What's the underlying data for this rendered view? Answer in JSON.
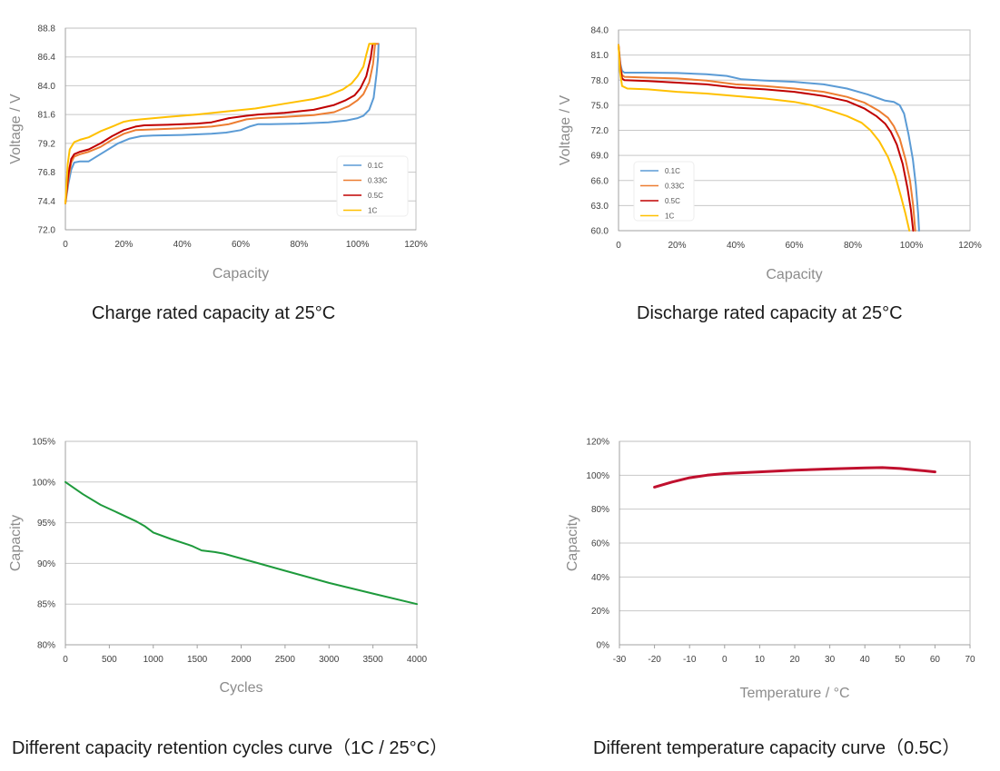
{
  "chart_data": [
    {
      "id": "charge",
      "type": "line",
      "title": "Charge rated capacity at 25°C",
      "xlabel": "Capacity",
      "ylabel": "Voltage / V",
      "xlim": [
        0,
        120
      ],
      "ylim": [
        72.0,
        88.8
      ],
      "xticks": [
        0,
        20,
        40,
        60,
        80,
        100,
        120
      ],
      "xtick_labels": [
        "0",
        "20%",
        "40%",
        "60%",
        "80%",
        "100%",
        "120%"
      ],
      "yticks": [
        72.0,
        74.4,
        76.8,
        79.2,
        81.6,
        84.0,
        86.4,
        88.8
      ],
      "ytick_labels": [
        "72.0",
        "74.4",
        "76.8",
        "79.2",
        "81.6",
        "84.0",
        "86.4",
        "88.8"
      ],
      "grid": "horizontal",
      "legend": "bottom-right",
      "series": [
        {
          "name": "0.1C",
          "color": "#5b9bd5",
          "points": [
            [
              0,
              74.2
            ],
            [
              1,
              75.8
            ],
            [
              2,
              77.0
            ],
            [
              3,
              77.6
            ],
            [
              5,
              77.7
            ],
            [
              8,
              77.7
            ],
            [
              10,
              78.0
            ],
            [
              14,
              78.6
            ],
            [
              18,
              79.2
            ],
            [
              22,
              79.6
            ],
            [
              26,
              79.8
            ],
            [
              30,
              79.85
            ],
            [
              40,
              79.9
            ],
            [
              50,
              80.0
            ],
            [
              55,
              80.1
            ],
            [
              60,
              80.3
            ],
            [
              63,
              80.6
            ],
            [
              66,
              80.8
            ],
            [
              70,
              80.8
            ],
            [
              80,
              80.85
            ],
            [
              90,
              80.95
            ],
            [
              96,
              81.1
            ],
            [
              100,
              81.3
            ],
            [
              102,
              81.5
            ],
            [
              104,
              82.0
            ],
            [
              105.5,
              83.0
            ],
            [
              106.5,
              85.0
            ],
            [
              107,
              86.3
            ],
            [
              107.2,
              87.5
            ]
          ]
        },
        {
          "name": "0.33C",
          "color": "#ed7d31",
          "points": [
            [
              0,
              74.2
            ],
            [
              1,
              76.2
            ],
            [
              2,
              77.6
            ],
            [
              3,
              78.1
            ],
            [
              5,
              78.3
            ],
            [
              8,
              78.5
            ],
            [
              12,
              78.9
            ],
            [
              16,
              79.5
            ],
            [
              20,
              80.0
            ],
            [
              24,
              80.3
            ],
            [
              28,
              80.35
            ],
            [
              40,
              80.45
            ],
            [
              50,
              80.6
            ],
            [
              56,
              80.8
            ],
            [
              62,
              81.2
            ],
            [
              66,
              81.3
            ],
            [
              75,
              81.4
            ],
            [
              85,
              81.55
            ],
            [
              92,
              81.8
            ],
            [
              97,
              82.3
            ],
            [
              100,
              82.8
            ],
            [
              102,
              83.3
            ],
            [
              104,
              84.3
            ],
            [
              105.3,
              85.8
            ],
            [
              106,
              87.5
            ],
            [
              107,
              87.5
            ]
          ]
        },
        {
          "name": "0.5C",
          "color": "#c00000",
          "points": [
            [
              0,
              74.2
            ],
            [
              1,
              76.6
            ],
            [
              2,
              77.9
            ],
            [
              3,
              78.3
            ],
            [
              5,
              78.5
            ],
            [
              8,
              78.7
            ],
            [
              12,
              79.2
            ],
            [
              16,
              79.8
            ],
            [
              20,
              80.3
            ],
            [
              24,
              80.6
            ],
            [
              27,
              80.7
            ],
            [
              35,
              80.75
            ],
            [
              45,
              80.85
            ],
            [
              50,
              80.95
            ],
            [
              56,
              81.3
            ],
            [
              62,
              81.5
            ],
            [
              66,
              81.6
            ],
            [
              75,
              81.75
            ],
            [
              85,
              82.0
            ],
            [
              92,
              82.4
            ],
            [
              96,
              82.8
            ],
            [
              99,
              83.2
            ],
            [
              101,
              83.8
            ],
            [
              103,
              84.8
            ],
            [
              104.5,
              86.3
            ],
            [
              105.2,
              87.5
            ],
            [
              106,
              87.5
            ]
          ]
        },
        {
          "name": "1C",
          "color": "#ffc000",
          "points": [
            [
              0,
              74.2
            ],
            [
              0.8,
              77.5
            ],
            [
              1.5,
              78.7
            ],
            [
              3,
              79.3
            ],
            [
              5,
              79.5
            ],
            [
              8,
              79.7
            ],
            [
              12,
              80.2
            ],
            [
              16,
              80.6
            ],
            [
              20,
              81.0
            ],
            [
              22,
              81.1
            ],
            [
              26,
              81.2
            ],
            [
              35,
              81.4
            ],
            [
              45,
              81.6
            ],
            [
              55,
              81.85
            ],
            [
              65,
              82.1
            ],
            [
              75,
              82.5
            ],
            [
              85,
              82.9
            ],
            [
              90,
              83.2
            ],
            [
              95,
              83.7
            ],
            [
              98,
              84.2
            ],
            [
              100,
              84.8
            ],
            [
              102,
              85.6
            ],
            [
              103,
              86.6
            ],
            [
              104,
              87.5
            ],
            [
              106,
              87.5
            ]
          ]
        }
      ]
    },
    {
      "id": "discharge",
      "type": "line",
      "title": "Discharge rated capacity at 25°C",
      "xlabel": "Capacity",
      "ylabel": "Voltage / V",
      "xlim": [
        0,
        120
      ],
      "ylim": [
        60.0,
        84.0
      ],
      "xticks": [
        0,
        20,
        40,
        60,
        80,
        100,
        120
      ],
      "xtick_labels": [
        "0",
        "20%",
        "40%",
        "60%",
        "80%",
        "100%",
        "120%"
      ],
      "yticks": [
        60.0,
        63.0,
        66.0,
        69.0,
        72.0,
        75.0,
        78.0,
        81.0,
        84.0
      ],
      "ytick_labels": [
        "60.0",
        "63.0",
        "66.0",
        "69.0",
        "72.0",
        "75.0",
        "78.0",
        "81.0",
        "84.0"
      ],
      "grid": "horizontal",
      "legend": "bottom-left",
      "series": [
        {
          "name": "0.1C",
          "color": "#5b9bd5",
          "points": [
            [
              0,
              82.2
            ],
            [
              0.6,
              80.0
            ],
            [
              1.2,
              79.1
            ],
            [
              2,
              78.9
            ],
            [
              10,
              78.9
            ],
            [
              20,
              78.85
            ],
            [
              30,
              78.7
            ],
            [
              37,
              78.5
            ],
            [
              42,
              78.1
            ],
            [
              50,
              77.95
            ],
            [
              60,
              77.8
            ],
            [
              70,
              77.5
            ],
            [
              78,
              77.0
            ],
            [
              85,
              76.3
            ],
            [
              89,
              75.8
            ],
            [
              91,
              75.55
            ],
            [
              94,
              75.4
            ],
            [
              96,
              75.0
            ],
            [
              97.5,
              74.0
            ],
            [
              99,
              71.5
            ],
            [
              100.5,
              68.5
            ],
            [
              101.5,
              65.5
            ],
            [
              102.3,
              62.0
            ],
            [
              102.6,
              60.0
            ]
          ]
        },
        {
          "name": "0.33C",
          "color": "#ed7d31",
          "points": [
            [
              0,
              82.2
            ],
            [
              0.6,
              79.8
            ],
            [
              1.2,
              78.6
            ],
            [
              2,
              78.4
            ],
            [
              10,
              78.3
            ],
            [
              20,
              78.2
            ],
            [
              30,
              77.95
            ],
            [
              40,
              77.5
            ],
            [
              50,
              77.3
            ],
            [
              60,
              77.0
            ],
            [
              70,
              76.6
            ],
            [
              78,
              76.0
            ],
            [
              84,
              75.3
            ],
            [
              89,
              74.3
            ],
            [
              92,
              73.5
            ],
            [
              94,
              72.5
            ],
            [
              96,
              71.0
            ],
            [
              98,
              68.5
            ],
            [
              99.5,
              66.0
            ],
            [
              100.6,
              63.0
            ],
            [
              101.3,
              60.0
            ]
          ]
        },
        {
          "name": "0.5C",
          "color": "#c00000",
          "points": [
            [
              0,
              82.2
            ],
            [
              0.6,
              79.5
            ],
            [
              1.2,
              78.2
            ],
            [
              2,
              78.0
            ],
            [
              10,
              77.9
            ],
            [
              20,
              77.7
            ],
            [
              30,
              77.5
            ],
            [
              40,
              77.1
            ],
            [
              50,
              76.9
            ],
            [
              60,
              76.6
            ],
            [
              70,
              76.1
            ],
            [
              78,
              75.5
            ],
            [
              84,
              74.6
            ],
            [
              88,
              73.7
            ],
            [
              91,
              72.8
            ],
            [
              93,
              71.8
            ],
            [
              95,
              70.3
            ],
            [
              97,
              68.0
            ],
            [
              98.7,
              65.0
            ],
            [
              99.8,
              62.5
            ],
            [
              100.6,
              60.0
            ]
          ]
        },
        {
          "name": "1C",
          "color": "#ffc000",
          "points": [
            [
              0,
              82.2
            ],
            [
              0.5,
              79.0
            ],
            [
              1.2,
              77.3
            ],
            [
              3,
              77.0
            ],
            [
              10,
              76.9
            ],
            [
              20,
              76.6
            ],
            [
              30,
              76.4
            ],
            [
              40,
              76.1
            ],
            [
              50,
              75.8
            ],
            [
              60,
              75.4
            ],
            [
              66,
              75.0
            ],
            [
              72,
              74.4
            ],
            [
              78,
              73.7
            ],
            [
              83,
              72.9
            ],
            [
              86,
              72.0
            ],
            [
              89,
              70.7
            ],
            [
              92,
              68.8
            ],
            [
              94.5,
              66.5
            ],
            [
              96.5,
              64.0
            ],
            [
              98,
              62.0
            ],
            [
              99.3,
              60.0
            ]
          ]
        }
      ]
    },
    {
      "id": "cycles",
      "type": "line",
      "title": "Different capacity retention cycles curve（1C / 25°C）",
      "xlabel": "Cycles",
      "ylabel": "Capacity",
      "xlim": [
        0,
        4000
      ],
      "ylim": [
        80,
        105
      ],
      "xticks": [
        0,
        500,
        1000,
        1500,
        2000,
        2500,
        3000,
        3500,
        4000
      ],
      "xtick_labels": [
        "0",
        "500",
        "1000",
        "1500",
        "2000",
        "2500",
        "3000",
        "3500",
        "4000"
      ],
      "yticks": [
        80,
        85,
        90,
        95,
        100,
        105
      ],
      "ytick_labels": [
        "80%",
        "85%",
        "90%",
        "95%",
        "100%",
        "105%"
      ],
      "grid": "horizontal",
      "legend": "none",
      "series": [
        {
          "name": "Capacity retention",
          "color": "#1e9a3c",
          "points": [
            [
              0,
              100
            ],
            [
              200,
              98.5
            ],
            [
              400,
              97.2
            ],
            [
              600,
              96.2
            ],
            [
              800,
              95.2
            ],
            [
              900,
              94.6
            ],
            [
              1000,
              93.8
            ],
            [
              1200,
              93.0
            ],
            [
              1400,
              92.3
            ],
            [
              1450,
              92.1
            ],
            [
              1550,
              91.6
            ],
            [
              1700,
              91.4
            ],
            [
              1800,
              91.2
            ],
            [
              2000,
              90.6
            ],
            [
              2200,
              90.0
            ],
            [
              2500,
              89.1
            ],
            [
              2800,
              88.2
            ],
            [
              3000,
              87.6
            ],
            [
              3500,
              86.3
            ],
            [
              4000,
              85.0
            ]
          ]
        }
      ]
    },
    {
      "id": "temperature",
      "type": "line",
      "title": "Different temperature capacity curve（0.5C）",
      "xlabel": "Temperature / °C",
      "ylabel": "Capacity",
      "xlim": [
        -30,
        70
      ],
      "ylim": [
        0,
        120
      ],
      "xticks": [
        -30,
        -20,
        -10,
        0,
        10,
        20,
        30,
        40,
        50,
        60,
        70
      ],
      "xtick_labels": [
        "-30",
        "-20",
        "-10",
        "0",
        "10",
        "20",
        "30",
        "40",
        "50",
        "60",
        "70"
      ],
      "yticks": [
        0,
        20,
        40,
        60,
        80,
        100,
        120
      ],
      "ytick_labels": [
        "0%",
        "20%",
        "40%",
        "60%",
        "80%",
        "100%",
        "120%"
      ],
      "grid": "horizontal",
      "legend": "none",
      "series": [
        {
          "name": "Capacity",
          "color": "#c0102e",
          "points": [
            [
              -20,
              93
            ],
            [
              -15,
              96
            ],
            [
              -10,
              98.5
            ],
            [
              -5,
              100
            ],
            [
              0,
              101
            ],
            [
              10,
              102
            ],
            [
              20,
              103
            ],
            [
              30,
              103.7
            ],
            [
              40,
              104.3
            ],
            [
              45,
              104.5
            ],
            [
              50,
              104
            ],
            [
              55,
              103
            ],
            [
              60,
              102
            ]
          ]
        }
      ]
    }
  ]
}
